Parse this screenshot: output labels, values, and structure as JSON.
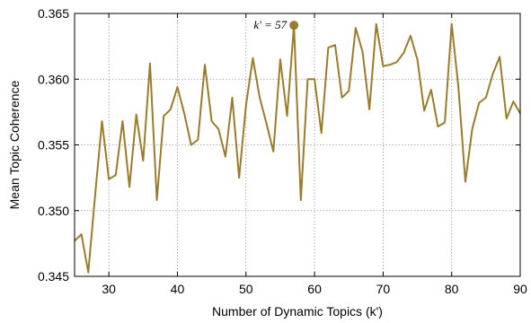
{
  "chart_data": {
    "type": "line",
    "xlabel": "Number of Dynamic Topics (k')",
    "ylabel": "Mean Topic Coherence",
    "xlim": [
      25,
      90
    ],
    "ylim": [
      0.345,
      0.365
    ],
    "xticks": [
      30,
      40,
      50,
      60,
      70,
      80,
      90
    ],
    "yticks": [
      0.345,
      0.35,
      0.355,
      0.36,
      0.365
    ],
    "ytick_labels": [
      "0.345",
      "0.350",
      "0.355",
      "0.360",
      "0.365"
    ],
    "grid": true,
    "color": "#9c7c2a",
    "x": [
      25,
      26,
      27,
      28,
      29,
      30,
      31,
      32,
      33,
      34,
      35,
      36,
      37,
      38,
      39,
      40,
      41,
      42,
      43,
      44,
      45,
      46,
      47,
      48,
      49,
      50,
      51,
      52,
      53,
      54,
      55,
      56,
      57,
      58,
      59,
      60,
      61,
      62,
      63,
      64,
      65,
      66,
      67,
      68,
      69,
      70,
      71,
      72,
      73,
      74,
      75,
      76,
      77,
      78,
      79,
      80,
      81,
      82,
      83,
      84,
      85,
      86,
      87,
      88,
      89,
      90
    ],
    "y": [
      0.3477,
      0.3482,
      0.3453,
      0.3512,
      0.3568,
      0.3524,
      0.3527,
      0.3568,
      0.3518,
      0.3573,
      0.3538,
      0.3612,
      0.3508,
      0.3572,
      0.3577,
      0.3594,
      0.3574,
      0.355,
      0.3554,
      0.3611,
      0.3568,
      0.3562,
      0.3541,
      0.3586,
      0.3525,
      0.358,
      0.3616,
      0.3586,
      0.3566,
      0.3545,
      0.3615,
      0.3572,
      0.3641,
      0.3508,
      0.36,
      0.36,
      0.3559,
      0.3624,
      0.3626,
      0.3586,
      0.3591,
      0.3639,
      0.3621,
      0.3577,
      0.3642,
      0.361,
      0.3611,
      0.3613,
      0.362,
      0.3633,
      0.3615,
      0.3576,
      0.3592,
      0.3564,
      0.3567,
      0.3642,
      0.3593,
      0.3522,
      0.3562,
      0.3582,
      0.3586,
      0.3604,
      0.3617,
      0.357,
      0.3583,
      0.3574
    ],
    "highlight": {
      "x": 57,
      "y": 0.3641,
      "label": "k' = 57"
    }
  }
}
